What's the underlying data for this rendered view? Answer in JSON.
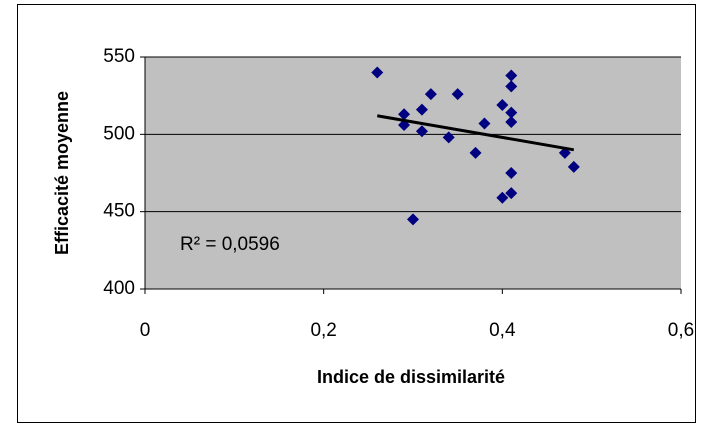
{
  "chart_data": {
    "type": "scatter",
    "xlabel": "Indice de dissimilarité",
    "ylabel": "Efficacité moyenne",
    "annotation": "R² = 0,0596",
    "series": [
      {
        "name": "Efficacité",
        "color": "#000080",
        "x": [
          0.26,
          0.29,
          0.29,
          0.31,
          0.31,
          0.32,
          0.35,
          0.34,
          0.38,
          0.37,
          0.3,
          0.4,
          0.41,
          0.41,
          0.41,
          0.41,
          0.41,
          0.41,
          0.4,
          0.47,
          0.48
        ],
        "values": [
          540,
          513,
          506,
          516,
          502,
          526,
          526,
          498,
          507,
          488,
          445,
          519,
          538,
          531,
          514,
          508,
          475,
          462,
          459,
          488,
          479
        ]
      }
    ],
    "trendline": {
      "color": "#000000",
      "x": [
        0.26,
        0.48
      ],
      "values": [
        512,
        490
      ]
    },
    "xlim": [
      0,
      0.6
    ],
    "xticks": [
      {
        "value": 0,
        "label": "0"
      },
      {
        "value": 0.2,
        "label": "0,2"
      },
      {
        "value": 0.4,
        "label": "0,4"
      },
      {
        "value": 0.6,
        "label": "0,6"
      }
    ],
    "ylim": [
      400,
      550
    ],
    "yticks": [
      400,
      450,
      500,
      550
    ],
    "grid": true,
    "plot_background": "#c0c0c0"
  }
}
